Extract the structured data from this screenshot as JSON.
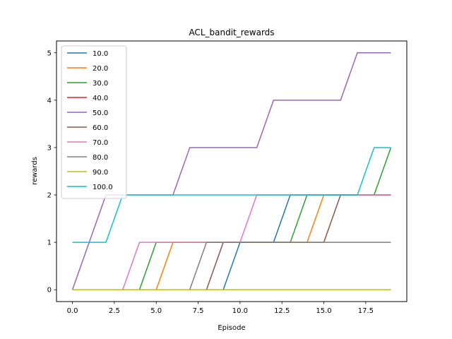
{
  "chart_data": {
    "type": "line",
    "title": "ACL_bandit_rewards",
    "xlabel": "Episode",
    "ylabel": "rewards",
    "xlim": [
      -0.95,
      19.95
    ],
    "ylim": [
      -0.25,
      5.25
    ],
    "xticks": [
      0.0,
      2.5,
      5.0,
      7.5,
      10.0,
      12.5,
      15.0,
      17.5
    ],
    "xtick_labels": [
      "0.0",
      "2.5",
      "5.0",
      "7.5",
      "10.0",
      "12.5",
      "15.0",
      "17.5"
    ],
    "yticks": [
      0,
      1,
      2,
      3,
      4,
      5
    ],
    "ytick_labels": [
      "0",
      "1",
      "2",
      "3",
      "4",
      "5"
    ],
    "grid": false,
    "legend_position": "top-left",
    "x": [
      0,
      1,
      2,
      3,
      4,
      5,
      6,
      7,
      8,
      9,
      10,
      11,
      12,
      13,
      14,
      15,
      16,
      17,
      18,
      19
    ],
    "series": [
      {
        "name": "10.0",
        "color": "#1f77b4",
        "values": [
          0,
          0,
          0,
          0,
          0,
          0,
          0,
          0,
          0,
          0,
          1,
          1,
          1,
          2,
          2,
          2,
          2,
          2,
          2,
          2
        ]
      },
      {
        "name": "20.0",
        "color": "#ff7f0e",
        "values": [
          0,
          0,
          0,
          0,
          0,
          0,
          1,
          1,
          1,
          1,
          1,
          1,
          1,
          1,
          1,
          2,
          2,
          2,
          2,
          2
        ]
      },
      {
        "name": "30.0",
        "color": "#2ca02c",
        "values": [
          0,
          0,
          0,
          0,
          0,
          1,
          1,
          1,
          1,
          1,
          1,
          1,
          1,
          1,
          2,
          2,
          2,
          2,
          2,
          3
        ]
      },
      {
        "name": "40.0",
        "color": "#d62728",
        "values": [
          0,
          0,
          0,
          0,
          0,
          0,
          0,
          0,
          0,
          0,
          0,
          0,
          0,
          0,
          0,
          0,
          0,
          0,
          0,
          0
        ]
      },
      {
        "name": "50.0",
        "color": "#9467bd",
        "values": [
          0,
          1,
          2,
          2,
          2,
          2,
          2,
          3,
          3,
          3,
          3,
          3,
          4,
          4,
          4,
          4,
          4,
          5,
          5,
          5
        ]
      },
      {
        "name": "60.0",
        "color": "#8c564b",
        "values": [
          0,
          0,
          0,
          0,
          0,
          0,
          0,
          0,
          0,
          1,
          1,
          1,
          1,
          1,
          1,
          1,
          2,
          2,
          2,
          2
        ]
      },
      {
        "name": "70.0",
        "color": "#e377c2",
        "values": [
          0,
          0,
          0,
          0,
          1,
          1,
          1,
          1,
          1,
          1,
          1,
          2,
          2,
          2,
          2,
          2,
          2,
          2,
          2,
          2
        ]
      },
      {
        "name": "80.0",
        "color": "#7f7f7f",
        "values": [
          0,
          0,
          0,
          0,
          0,
          0,
          0,
          0,
          1,
          1,
          1,
          1,
          1,
          1,
          1,
          1,
          1,
          1,
          1,
          1
        ]
      },
      {
        "name": "90.0",
        "color": "#bcbd22",
        "values": [
          0,
          0,
          0,
          0,
          0,
          0,
          0,
          0,
          0,
          0,
          0,
          0,
          0,
          0,
          0,
          0,
          0,
          0,
          0,
          0
        ]
      },
      {
        "name": "100.0",
        "color": "#17becf",
        "values": [
          1,
          1,
          1,
          2,
          2,
          2,
          2,
          2,
          2,
          2,
          2,
          2,
          2,
          2,
          2,
          2,
          2,
          2,
          3,
          3
        ]
      }
    ]
  }
}
